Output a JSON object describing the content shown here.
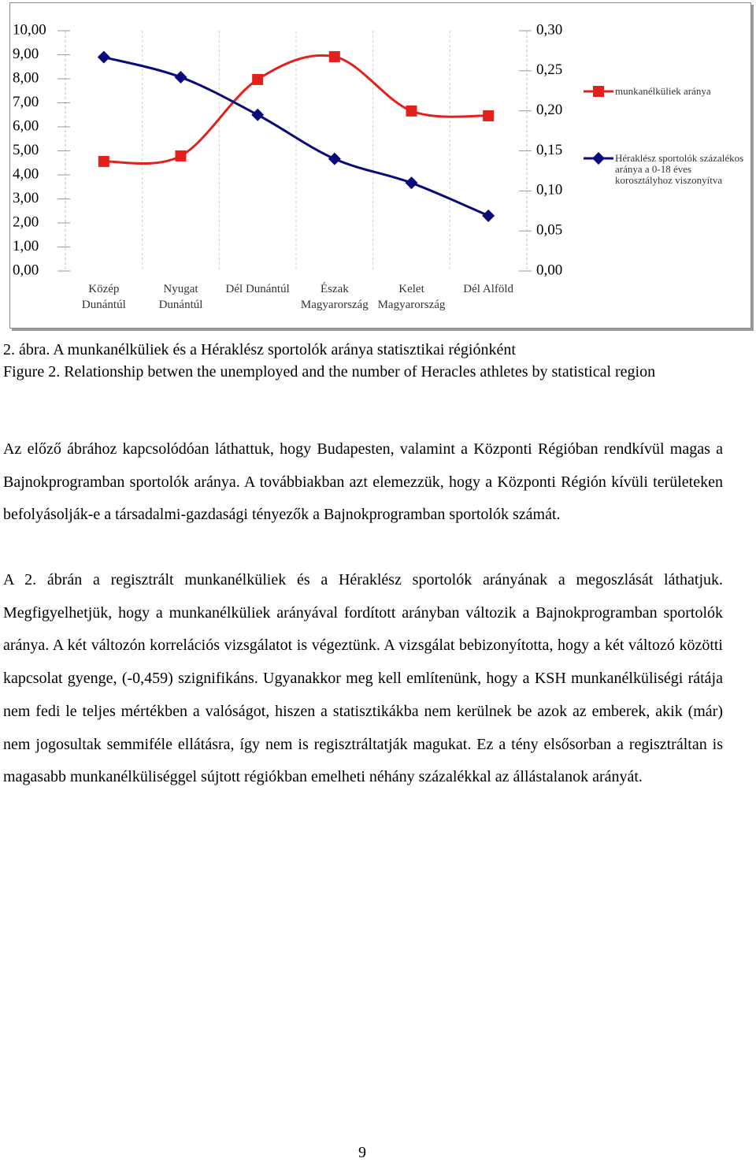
{
  "chart_data": {
    "type": "line",
    "categories": [
      "Közép Dunántúl",
      "Nyugat Dunántúl",
      "Dél Dunántúl",
      "Észak Magyarország",
      "Kelet Magyarország",
      "Dél Alföld"
    ],
    "series": [
      {
        "name": "munkanélküliek aránya",
        "color": "#e3211c",
        "marker": "square",
        "values": [
          4.56,
          4.79,
          7.97,
          8.92,
          6.66,
          6.46
        ]
      },
      {
        "name": "Héraklész sportolók százalékos aránya a 0-18 éves korosztályhoz viszonyítva",
        "color": "#0a0a7a",
        "marker": "diamond",
        "axis": "y2",
        "values": [
          0.267,
          0.242,
          0.195,
          0.14,
          0.11,
          0.069
        ]
      }
    ],
    "ylim": [
      0,
      10
    ],
    "yticks": [
      {
        "value": 0,
        "label": "0,00"
      },
      {
        "value": 1,
        "label": "1,00"
      },
      {
        "value": 2,
        "label": "2,00"
      },
      {
        "value": 3,
        "label": "3,00"
      },
      {
        "value": 4,
        "label": "4,00"
      },
      {
        "value": 5,
        "label": "5,00"
      },
      {
        "value": 6,
        "label": "6,00"
      },
      {
        "value": 7,
        "label": "7,00"
      },
      {
        "value": 8,
        "label": "8,00"
      },
      {
        "value": 9,
        "label": "9,00"
      },
      {
        "value": 10,
        "label": "10,00"
      }
    ],
    "y2lim": [
      0,
      0.3
    ],
    "y2ticks": [
      {
        "value": 0,
        "label": "0,00"
      },
      {
        "value": 0.05,
        "label": "0,05"
      },
      {
        "value": 0.1,
        "label": "0,10"
      },
      {
        "value": 0.15,
        "label": "0,15"
      },
      {
        "value": 0.2,
        "label": "0,20"
      },
      {
        "value": 0.25,
        "label": "0,25"
      },
      {
        "value": 0.3,
        "label": "0,30"
      }
    ],
    "legend": "right"
  },
  "caption": {
    "hu": "2. ábra. A munkanélküliek és a Héraklész sportolók aránya statisztikai régiónként",
    "en": "Figure 2. Relationship betwen the unemployed and the number of Heracles athletes by statistical region"
  },
  "paragraphs": [
    "Az előző ábrához kapcsolódóan láthattuk, hogy Budapesten, valamint a Központi Régióban rendkívül magas a Bajnokprogramban sportolók aránya. A továbbiakban azt elemezzük, hogy a Központi Régión kívüli területeken befolyásolják-e a társadalmi-gazdasági tényezők a Bajnokprogramban sportolók számát.",
    "A 2. ábrán a regisztrált munkanélküliek és a Héraklész sportolók arányának a megoszlását láthatjuk. Megfigyelhetjük, hogy a munkanélküliek arányával fordított arányban változik a Bajnokprogramban sportolók aránya. A két változón korrelációs vizsgálatot is végeztünk. A vizsgálat bebizonyította, hogy a két változó közötti kapcsolat gyenge, (-0,459) szignifikáns. Ugyanakkor meg kell említenünk, hogy a KSH munkanélküliségi rátája nem fedi le teljes mértékben a valóságot, hiszen a statisztikákba nem kerülnek be azok az emberek, akik (már) nem jogosultak semmiféle ellátásra, így nem is regisztráltatják magukat. Ez a tény elsősorban a regisztráltan is magasabb munkanélküliséggel sújtott régiókban emelheti néhány százalékkal az állástalanok arányát."
  ],
  "page_number": "9"
}
